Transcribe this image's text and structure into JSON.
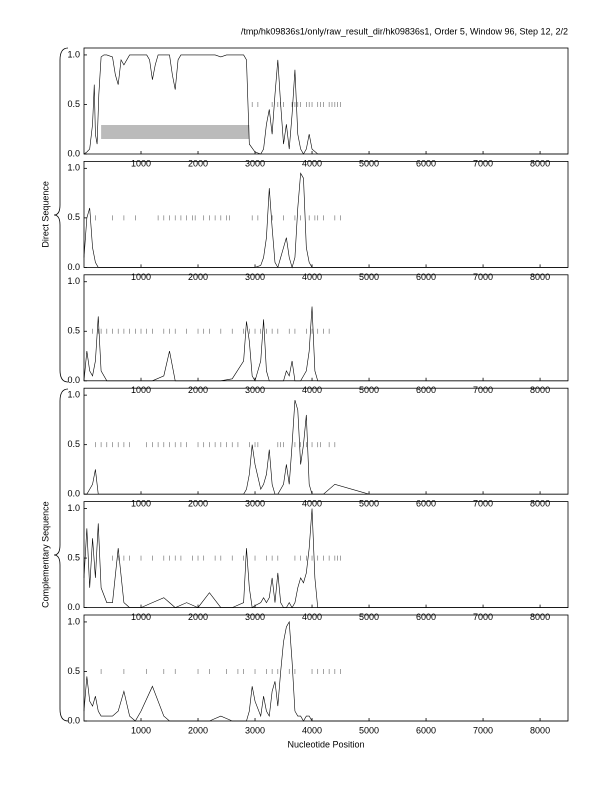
{
  "chart_data": [
    {
      "type": "line",
      "title": "/tmp/hk09836s1/only/raw_result_dir/hk09836s1, Order 5, Window 96, Step 12, 2/2",
      "xlim": [
        0,
        8490
      ],
      "ylim": [
        0,
        1.07
      ],
      "xticks": [
        1000,
        2000,
        3000,
        4000,
        5000,
        6000,
        7000,
        8000
      ],
      "yticks": [
        {
          "value": 0,
          "label": "0.0"
        },
        {
          "value": 0.5,
          "label": "0.5"
        },
        {
          "value": 1,
          "label": "1.0"
        }
      ],
      "color": "#000000",
      "x": [
        0,
        50,
        100,
        150,
        180,
        200,
        230,
        260,
        300,
        350,
        400,
        500,
        550,
        600,
        650,
        700,
        800,
        900,
        1000,
        1100,
        1150,
        1200,
        1250,
        1300,
        1400,
        1500,
        1550,
        1600,
        1650,
        1700,
        1800,
        1900,
        2000,
        2100,
        2200,
        2300,
        2400,
        2500,
        2600,
        2700,
        2800,
        2850,
        2900,
        3000,
        3100,
        3150,
        3200,
        3250,
        3300,
        3350,
        3400,
        3450,
        3500,
        3550,
        3600,
        3650,
        3700,
        3750,
        3800,
        3850,
        3900,
        3950,
        4000,
        4100,
        5000,
        6000,
        7000,
        8490
      ],
      "values": [
        0,
        0.02,
        0.05,
        0.3,
        0.7,
        0.2,
        0.1,
        0.6,
        0.98,
        1,
        1,
        0.98,
        0.8,
        0.7,
        0.95,
        0.9,
        1,
        1,
        1,
        1,
        0.95,
        0.75,
        0.9,
        1,
        1,
        1,
        0.8,
        0.65,
        0.95,
        1,
        1,
        1,
        1,
        1,
        1,
        1,
        0.98,
        1,
        1,
        1,
        1,
        0.95,
        0.1,
        0.02,
        0,
        0.05,
        0.3,
        0.45,
        0.2,
        0.6,
        0.95,
        0.5,
        0.1,
        0.3,
        0.05,
        0.4,
        0.85,
        0.2,
        0.05,
        0,
        0.05,
        0.2,
        0.05,
        0,
        0,
        0,
        0,
        0
      ],
      "marker_y": 0.5,
      "markers": [
        2950,
        3050,
        3300,
        3400,
        3450,
        3500,
        3650,
        3700,
        3750,
        3800,
        3900,
        3950,
        4000,
        4100,
        4150,
        4200,
        4300,
        4350,
        4400,
        4450,
        4500
      ],
      "regions": [
        {
          "start": 300,
          "end": 2900
        }
      ]
    },
    {
      "type": "line",
      "y_label": "Direct Sequence",
      "xlim": [
        0,
        8490
      ],
      "ylim": [
        0,
        1.07
      ],
      "xticks": [
        1000,
        2000,
        3000,
        4000,
        5000,
        6000,
        7000,
        8000
      ],
      "yticks": [
        {
          "value": 0,
          "label": "0.0"
        },
        {
          "value": 0.5,
          "label": "0.5"
        },
        {
          "value": 1,
          "label": "1.0"
        }
      ],
      "color": "#000000",
      "x": [
        0,
        50,
        100,
        150,
        200,
        250,
        300,
        400,
        500,
        600,
        700,
        800,
        900,
        1000,
        1200,
        1400,
        1500,
        1600,
        1800,
        2000,
        2200,
        2400,
        2600,
        2800,
        2850,
        2900,
        2950,
        3000,
        3100,
        3150,
        3200,
        3250,
        3300,
        3350,
        3400,
        3450,
        3500,
        3550,
        3600,
        3650,
        3700,
        3750,
        3800,
        3850,
        3900,
        3950,
        4000,
        4050,
        4100,
        4200,
        4400,
        5000,
        8490
      ],
      "values": [
        0.1,
        0.5,
        0.6,
        0.2,
        0.05,
        0,
        0,
        0,
        0,
        0,
        0,
        0,
        0,
        0,
        0,
        0,
        0,
        0,
        0,
        0,
        0,
        0,
        0,
        0,
        0,
        0,
        0,
        0,
        0.02,
        0.1,
        0.3,
        0.8,
        0.4,
        0.05,
        0,
        0.1,
        0.2,
        0.3,
        0.1,
        0,
        0.1,
        0.6,
        0.95,
        0.9,
        0.2,
        0.05,
        0,
        0,
        0,
        0,
        0,
        0,
        0
      ],
      "marker_y": 0.5,
      "markers": [
        200,
        500,
        700,
        900,
        1300,
        1400,
        1500,
        1600,
        1700,
        1800,
        1900,
        1950,
        2100,
        2200,
        2300,
        2400,
        2500,
        2550,
        2950,
        3050,
        3300,
        3500,
        3700,
        3800,
        3950,
        4050,
        4100,
        4200,
        4400,
        4500
      ]
    },
    {
      "type": "line",
      "xlim": [
        0,
        8490
      ],
      "ylim": [
        0,
        1.07
      ],
      "xticks": [
        1000,
        2000,
        3000,
        4000,
        5000,
        6000,
        7000,
        8000
      ],
      "yticks": [
        {
          "value": 0,
          "label": "0.0"
        },
        {
          "value": 0.5,
          "label": "0.5"
        },
        {
          "value": 1,
          "label": "1.0"
        }
      ],
      "color": "#000000",
      "x": [
        0,
        50,
        100,
        150,
        200,
        250,
        300,
        400,
        500,
        600,
        700,
        800,
        900,
        1000,
        1200,
        1400,
        1500,
        1600,
        1800,
        2000,
        2200,
        2400,
        2600,
        2800,
        2850,
        2900,
        2950,
        3000,
        3100,
        3150,
        3200,
        3250,
        3300,
        3350,
        3400,
        3450,
        3500,
        3550,
        3600,
        3650,
        3700,
        3750,
        3800,
        3850,
        3900,
        3950,
        4000,
        4050,
        4100,
        4200,
        4400,
        5000,
        8490
      ],
      "values": [
        0,
        0.3,
        0.1,
        0.05,
        0.2,
        0.65,
        0.1,
        0,
        0,
        0,
        0,
        0,
        0,
        0,
        0,
        0.05,
        0.3,
        0,
        0,
        0,
        0,
        0,
        0.02,
        0.2,
        0.6,
        0.4,
        0.05,
        0,
        0.2,
        0.62,
        0.1,
        0,
        0,
        0,
        0,
        0,
        0,
        0.1,
        0.05,
        0.2,
        0,
        0,
        0,
        0.05,
        0.1,
        0.3,
        0.75,
        0.1,
        0,
        0,
        0,
        0,
        0
      ],
      "marker_y": 0.5,
      "markers": [
        150,
        250,
        300,
        400,
        500,
        600,
        700,
        800,
        900,
        1000,
        1100,
        1200,
        1400,
        1500,
        1600,
        1800,
        2000,
        2100,
        2200,
        2400,
        2600,
        2800,
        2900,
        3000,
        3100,
        3200,
        3300,
        3400,
        3600,
        3700,
        3900,
        4000,
        4100,
        4200,
        4300
      ]
    },
    {
      "type": "line",
      "xlim": [
        0,
        8490
      ],
      "ylim": [
        0,
        1.07
      ],
      "xticks": [
        1000,
        2000,
        3000,
        4000,
        5000,
        6000,
        7000,
        8000
      ],
      "yticks": [
        {
          "value": 0,
          "label": "0.0"
        },
        {
          "value": 0.5,
          "label": "0.5"
        },
        {
          "value": 1,
          "label": "1.0"
        }
      ],
      "color": "#000000",
      "x": [
        0,
        50,
        100,
        150,
        200,
        250,
        300,
        400,
        500,
        600,
        700,
        800,
        900,
        1000,
        1200,
        1400,
        1500,
        1600,
        1800,
        2000,
        2200,
        2400,
        2600,
        2800,
        2850,
        2900,
        2950,
        3000,
        3100,
        3150,
        3200,
        3250,
        3300,
        3350,
        3400,
        3450,
        3500,
        3550,
        3600,
        3650,
        3700,
        3750,
        3800,
        3850,
        3900,
        3950,
        4000,
        4050,
        4100,
        4200,
        4400,
        5000,
        8490
      ],
      "values": [
        0,
        0,
        0.05,
        0.1,
        0.25,
        0,
        0,
        0,
        0,
        0,
        0,
        0,
        0,
        0,
        0,
        0,
        0,
        0,
        0,
        0,
        0,
        0,
        0,
        0,
        0.05,
        0.2,
        0.5,
        0.3,
        0.05,
        0.1,
        0.2,
        0.45,
        0.1,
        0,
        0,
        0.05,
        0.1,
        0.3,
        0.1,
        0.5,
        0.95,
        0.85,
        0.3,
        0.5,
        0.8,
        0.1,
        0,
        0,
        0,
        0,
        0.1,
        0,
        0
      ],
      "marker_y": 0.5,
      "markers": [
        200,
        300,
        400,
        500,
        600,
        700,
        800,
        1100,
        1200,
        1300,
        1400,
        1500,
        1600,
        1700,
        1800,
        2000,
        2100,
        2200,
        2300,
        2400,
        2500,
        2600,
        2700,
        2900,
        3000,
        3050,
        3400,
        3450,
        3500,
        3700,
        3800,
        3900,
        4000,
        4100,
        4150,
        4300,
        4400
      ]
    },
    {
      "type": "line",
      "y_label": "Complementary Sequence",
      "xlim": [
        0,
        8490
      ],
      "ylim": [
        0,
        1.07
      ],
      "xticks": [
        1000,
        2000,
        3000,
        4000,
        5000,
        6000,
        7000,
        8000
      ],
      "yticks": [
        {
          "value": 0,
          "label": "0.0"
        },
        {
          "value": 0.5,
          "label": "0.5"
        },
        {
          "value": 1,
          "label": "1.0"
        }
      ],
      "color": "#000000",
      "x": [
        0,
        50,
        100,
        150,
        200,
        250,
        300,
        400,
        500,
        600,
        700,
        800,
        900,
        1000,
        1200,
        1400,
        1500,
        1600,
        1800,
        2000,
        2200,
        2400,
        2600,
        2800,
        2850,
        2900,
        2950,
        3000,
        3100,
        3150,
        3200,
        3250,
        3300,
        3350,
        3400,
        3450,
        3500,
        3550,
        3600,
        3650,
        3700,
        3750,
        3800,
        3850,
        3900,
        3950,
        4000,
        4050,
        4100,
        4200,
        4400,
        5000,
        8490
      ],
      "values": [
        0.3,
        0.8,
        0.2,
        0.7,
        0.3,
        0.85,
        0.2,
        0.05,
        0.05,
        0.6,
        0.05,
        0,
        0,
        0,
        0.05,
        0.1,
        0.05,
        0,
        0.05,
        0,
        0.15,
        0,
        0,
        0.05,
        0.6,
        0.2,
        0,
        0.02,
        0.05,
        0.1,
        0.05,
        0.1,
        0.3,
        0.05,
        0.35,
        0.05,
        0,
        0,
        0.05,
        0,
        0.05,
        0.2,
        0.3,
        0.25,
        0.35,
        0.6,
        1,
        0.3,
        0,
        0,
        0,
        0,
        0
      ],
      "marker_y": 0.5,
      "markers": [
        500,
        600,
        700,
        800,
        1000,
        1200,
        1400,
        1500,
        1600,
        1700,
        1900,
        2000,
        2100,
        2300,
        2400,
        2600,
        2800,
        3000,
        3200,
        3300,
        3400,
        3700,
        3800,
        3900,
        4000,
        4100,
        4200,
        4300,
        4400,
        4450,
        4500
      ]
    },
    {
      "type": "line",
      "x_label": "Nucleotide Position",
      "xlim": [
        0,
        8490
      ],
      "ylim": [
        0,
        1.07
      ],
      "xticks": [
        1000,
        2000,
        3000,
        4000,
        5000,
        6000,
        7000,
        8000
      ],
      "yticks": [
        {
          "value": 0,
          "label": "0.0"
        },
        {
          "value": 0.5,
          "label": "0.5"
        },
        {
          "value": 1,
          "label": "1.0"
        }
      ],
      "color": "#000000",
      "x": [
        0,
        50,
        100,
        150,
        200,
        250,
        300,
        400,
        500,
        600,
        700,
        800,
        900,
        1000,
        1200,
        1400,
        1500,
        1600,
        1800,
        2000,
        2200,
        2400,
        2600,
        2800,
        2850,
        2900,
        2950,
        3000,
        3100,
        3150,
        3200,
        3250,
        3300,
        3350,
        3400,
        3450,
        3500,
        3550,
        3600,
        3650,
        3700,
        3750,
        3800,
        3850,
        3900,
        3950,
        4000,
        4050,
        4100,
        4200,
        4400,
        5000,
        8490
      ],
      "values": [
        0.1,
        0.45,
        0.2,
        0.15,
        0.25,
        0.1,
        0.05,
        0.05,
        0.05,
        0.1,
        0.3,
        0.05,
        0,
        0.1,
        0.35,
        0.05,
        0,
        0,
        0,
        0,
        0,
        0.05,
        0,
        0,
        0,
        0.1,
        0.35,
        0.2,
        0.05,
        0.25,
        0.1,
        0.05,
        0.3,
        0.4,
        0.15,
        0.5,
        0.8,
        0.95,
        1,
        0.6,
        0.1,
        0.05,
        0.05,
        0,
        0.05,
        0.05,
        0,
        0,
        0,
        0,
        0,
        0,
        0
      ],
      "marker_y": 0.5,
      "markers": [
        300,
        700,
        1100,
        1400,
        1600,
        2000,
        2200,
        2500,
        2700,
        2800,
        3000,
        3200,
        3300,
        3400,
        3600,
        3700,
        4000,
        4100,
        4200,
        4300,
        4400,
        4500
      ]
    }
  ]
}
